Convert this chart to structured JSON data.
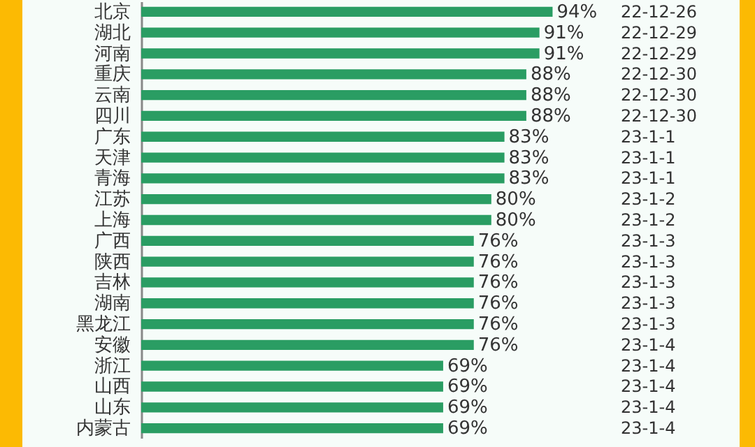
{
  "chart_data": {
    "type": "bar",
    "orientation": "horizontal",
    "categories": [
      "北京",
      "湖北",
      "河南",
      "重庆",
      "云南",
      "四川",
      "广东",
      "天津",
      "青海",
      "江苏",
      "上海",
      "广西",
      "陕西",
      "吉林",
      "湖南",
      "黑龙江",
      "安徽",
      "浙江",
      "山西",
      "山东",
      "内蒙古"
    ],
    "values": [
      94,
      91,
      91,
      88,
      88,
      88,
      83,
      83,
      83,
      80,
      80,
      76,
      76,
      76,
      76,
      76,
      76,
      69,
      69,
      69,
      69
    ],
    "value_labels": [
      "94%",
      "91%",
      "91%",
      "88%",
      "88%",
      "88%",
      "83%",
      "83%",
      "83%",
      "80%",
      "80%",
      "76%",
      "76%",
      "76%",
      "76%",
      "76%",
      "76%",
      "69%",
      "69%",
      "69%",
      "69%"
    ],
    "color": "#2a9d63",
    "annotations": [
      "22-12-26",
      "22-12-29",
      "22-12-29",
      "22-12-30",
      "22-12-30",
      "22-12-30",
      "23-1-1",
      "23-1-1",
      "23-1-1",
      "23-1-2",
      "23-1-2",
      "23-1-3",
      "23-1-3",
      "23-1-3",
      "23-1-3",
      "23-1-3",
      "23-1-4",
      "23-1-4",
      "23-1-4",
      "23-1-4",
      "23-1-4"
    ]
  }
}
